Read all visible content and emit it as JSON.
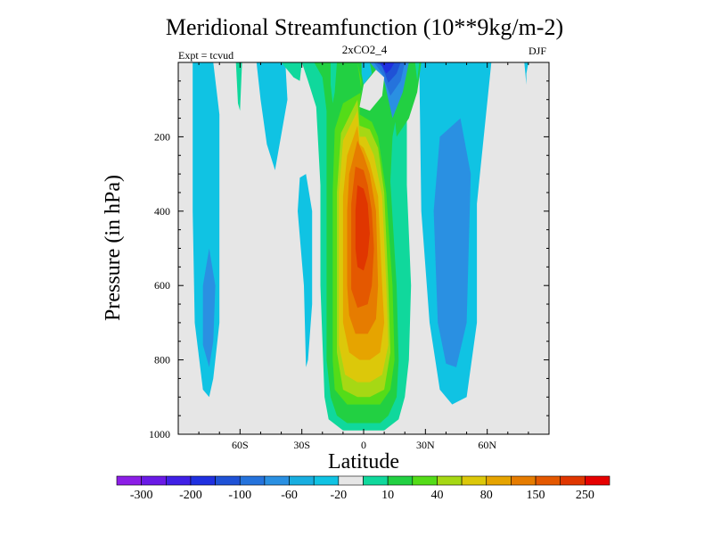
{
  "header": {
    "title": "Meridional Streamfunction (10**9kg/m-2)",
    "subtitle": "2xCO2_4",
    "left_note": "Expt = tcvud",
    "right_note": "DJF"
  },
  "chart_data": {
    "type": "contour",
    "xlabel": "Latitude",
    "ylabel": "Pressure (in hPa)",
    "xlim": [
      -90,
      90
    ],
    "ylim": [
      1000,
      0
    ],
    "y_inverted": true,
    "x_ticks": [
      {
        "value": -60,
        "label": "60S"
      },
      {
        "value": -30,
        "label": "30S"
      },
      {
        "value": 0,
        "label": "0"
      },
      {
        "value": 30,
        "label": "30N"
      },
      {
        "value": 60,
        "label": "60N"
      }
    ],
    "y_ticks": [
      {
        "value": 200,
        "label": "200"
      },
      {
        "value": 400,
        "label": "400"
      },
      {
        "value": 600,
        "label": "600"
      },
      {
        "value": 800,
        "label": "800"
      },
      {
        "value": 1000,
        "label": "1000"
      }
    ],
    "background_color": "#e6e6e6",
    "colorbar": {
      "colors": [
        "#8c1ee6",
        "#6a1ae6",
        "#4020e6",
        "#2030e0",
        "#1f52d6",
        "#2573dc",
        "#2a90e2",
        "#18aee0",
        "#10c3e3",
        "#e6e6e6",
        "#10d89c",
        "#22d042",
        "#54dc18",
        "#a6d814",
        "#dcc80a",
        "#e6a400",
        "#e67c00",
        "#e45800",
        "#e03600",
        "#e60000"
      ],
      "labels": [
        "-300",
        "-200",
        "-100",
        "-60",
        "-20",
        "10",
        "40",
        "80",
        "150",
        "250"
      ],
      "label_after_box": [
        0,
        2,
        4,
        6,
        8,
        10,
        12,
        14,
        16,
        18
      ]
    },
    "contour_regions": [
      {
        "level": 8,
        "color": "#10c3e3",
        "points": [
          [
            -83,
            0
          ],
          [
            -73,
            0
          ],
          [
            -70,
            140
          ],
          [
            -70,
            400
          ],
          [
            -70,
            700
          ],
          [
            -73,
            850
          ],
          [
            -75,
            900
          ],
          [
            -78,
            880
          ],
          [
            -82,
            700
          ],
          [
            -83,
            400
          ],
          [
            -83,
            150
          ]
        ]
      },
      {
        "level": 7,
        "color": "#2a90e2",
        "points": [
          [
            -75,
            500
          ],
          [
            -72,
            600
          ],
          [
            -73,
            750
          ],
          [
            -75,
            820
          ],
          [
            -78,
            760
          ],
          [
            -78,
            600
          ]
        ]
      },
      {
        "level": 8,
        "color": "#10c3e3",
        "points": [
          [
            -52,
            0
          ],
          [
            -38,
            0
          ],
          [
            -37,
            100
          ],
          [
            -43,
            290
          ],
          [
            -47,
            220
          ],
          [
            -50,
            100
          ]
        ]
      },
      {
        "level": 8,
        "color": "#10c3e3",
        "points": [
          [
            -31,
            310
          ],
          [
            -28,
            300
          ],
          [
            -25,
            400
          ],
          [
            -25,
            650
          ],
          [
            -27,
            800
          ],
          [
            -28,
            820
          ],
          [
            -29,
            600
          ],
          [
            -32,
            400
          ]
        ]
      },
      {
        "level": 8,
        "color": "#10c3e3",
        "points": [
          [
            27,
            0
          ],
          [
            62,
            0
          ],
          [
            55,
            380
          ],
          [
            55,
            700
          ],
          [
            50,
            900
          ],
          [
            43,
            920
          ],
          [
            37,
            880
          ],
          [
            32,
            700
          ],
          [
            28,
            400
          ]
        ]
      },
      {
        "level": 7,
        "color": "#2a90e2",
        "points": [
          [
            37,
            200
          ],
          [
            47,
            150
          ],
          [
            52,
            300
          ],
          [
            50,
            700
          ],
          [
            45,
            820
          ],
          [
            40,
            810
          ],
          [
            36,
            700
          ],
          [
            34,
            400
          ]
        ]
      },
      {
        "level": 8,
        "color": "#10c3e3",
        "points": [
          [
            78,
            0
          ],
          [
            80,
            0
          ],
          [
            79,
            30
          ],
          [
            79,
            60
          ]
        ]
      },
      {
        "level": 10,
        "color": "#10d89c",
        "points": [
          [
            -62,
            0
          ],
          [
            -59,
            0
          ],
          [
            -60,
            130
          ],
          [
            -61,
            110
          ]
        ]
      },
      {
        "level": 10,
        "color": "#10d89c",
        "points": [
          [
            -30,
            0
          ],
          [
            13,
            0
          ],
          [
            19,
            60
          ],
          [
            21,
            140
          ],
          [
            21,
            330
          ],
          [
            23,
            600
          ],
          [
            22,
            800
          ],
          [
            20,
            900
          ],
          [
            17,
            960
          ],
          [
            10,
            990
          ],
          [
            -10,
            990
          ],
          [
            -17,
            960
          ],
          [
            -19,
            900
          ],
          [
            -21,
            600
          ],
          [
            -21,
            330
          ],
          [
            -23,
            120
          ],
          [
            -27,
            50
          ]
        ]
      },
      {
        "level": 11,
        "color": "#22d042",
        "points": [
          [
            -24,
            0
          ],
          [
            9,
            0
          ],
          [
            14,
            80
          ],
          [
            16,
            140
          ],
          [
            14,
            200
          ],
          [
            13,
            320
          ],
          [
            16,
            600
          ],
          [
            17,
            800
          ],
          [
            16,
            900
          ],
          [
            12,
            950
          ],
          [
            8,
            970
          ],
          [
            -8,
            970
          ],
          [
            -13,
            950
          ],
          [
            -16,
            900
          ],
          [
            -18,
            800
          ],
          [
            -18,
            600
          ],
          [
            -18,
            330
          ],
          [
            -18,
            130
          ],
          [
            -20,
            40
          ]
        ]
      },
      {
        "level": 11,
        "color": "#22d042",
        "points": [
          [
            14,
            0
          ],
          [
            28,
            0
          ],
          [
            26,
            80
          ],
          [
            22,
            150
          ],
          [
            16,
            200
          ],
          [
            15,
            140
          ],
          [
            16,
            80
          ]
        ]
      },
      {
        "level": 10,
        "color": "#10d89c",
        "points": [
          [
            25,
            0
          ],
          [
            27,
            0
          ],
          [
            26,
            50
          ]
        ]
      },
      {
        "level": 12,
        "color": "#54dc18",
        "points": [
          [
            -3,
            0
          ],
          [
            -1,
            80
          ],
          [
            -10,
            110
          ],
          [
            -14,
            180
          ],
          [
            -15,
            350
          ],
          [
            -15,
            600
          ],
          [
            -15,
            800
          ],
          [
            -14,
            880
          ],
          [
            -8,
            920
          ],
          [
            8,
            920
          ],
          [
            13,
            880
          ],
          [
            15,
            800
          ],
          [
            14,
            600
          ],
          [
            11,
            350
          ],
          [
            7,
            200
          ],
          [
            4,
            160
          ],
          [
            -2,
            140
          ],
          [
            -1,
            50
          ]
        ]
      },
      {
        "level": 13,
        "color": "#a6d814",
        "points": [
          [
            -3,
            100
          ],
          [
            -11,
            190
          ],
          [
            -13,
            350
          ],
          [
            -13,
            600
          ],
          [
            -13,
            780
          ],
          [
            -10,
            880
          ],
          [
            -3,
            900
          ],
          [
            3,
            900
          ],
          [
            10,
            880
          ],
          [
            13,
            780
          ],
          [
            12,
            600
          ],
          [
            10,
            350
          ],
          [
            7,
            230
          ],
          [
            3,
            180
          ],
          [
            -2,
            170
          ]
        ]
      },
      {
        "level": 14,
        "color": "#dcc80a",
        "points": [
          [
            -3,
            130
          ],
          [
            -10,
            210
          ],
          [
            -12,
            350
          ],
          [
            -12,
            600
          ],
          [
            -12,
            760
          ],
          [
            -9,
            840
          ],
          [
            -3,
            860
          ],
          [
            3,
            860
          ],
          [
            9,
            840
          ],
          [
            12,
            760
          ],
          [
            11,
            600
          ],
          [
            9,
            360
          ],
          [
            5,
            250
          ],
          [
            1,
            200
          ],
          [
            -2,
            200
          ]
        ]
      },
      {
        "level": 15,
        "color": "#e6a400",
        "points": [
          [
            -3,
            170
          ],
          [
            -8,
            250
          ],
          [
            -10,
            360
          ],
          [
            -10,
            600
          ],
          [
            -10,
            700
          ],
          [
            -7,
            780
          ],
          [
            -2,
            800
          ],
          [
            3,
            800
          ],
          [
            8,
            780
          ],
          [
            10,
            700
          ],
          [
            9,
            600
          ],
          [
            7,
            360
          ],
          [
            3,
            270
          ],
          [
            0,
            230
          ],
          [
            -2,
            220
          ]
        ]
      },
      {
        "level": 16,
        "color": "#e67c00",
        "points": [
          [
            -3,
            210
          ],
          [
            -7,
            300
          ],
          [
            -8,
            400
          ],
          [
            -8,
            600
          ],
          [
            -7,
            680
          ],
          [
            -4,
            730
          ],
          [
            2,
            730
          ],
          [
            6,
            690
          ],
          [
            7,
            600
          ],
          [
            6,
            400
          ],
          [
            3,
            300
          ],
          [
            0,
            250
          ]
        ]
      },
      {
        "level": 17,
        "color": "#e45800",
        "points": [
          [
            -4,
            280
          ],
          [
            -6,
            380
          ],
          [
            -6,
            500
          ],
          [
            -6,
            610
          ],
          [
            -3,
            660
          ],
          [
            2,
            650
          ],
          [
            4,
            600
          ],
          [
            5,
            500
          ],
          [
            4,
            400
          ],
          [
            2,
            330
          ],
          [
            0,
            290
          ]
        ]
      },
      {
        "level": 18,
        "color": "#e03600",
        "points": [
          [
            -3,
            330
          ],
          [
            -4,
            400
          ],
          [
            -4,
            500
          ],
          [
            -3,
            550
          ],
          [
            0,
            560
          ],
          [
            2,
            520
          ],
          [
            3,
            460
          ],
          [
            2,
            380
          ],
          [
            0,
            340
          ]
        ]
      },
      {
        "level": 8,
        "color": "#10c3e3",
        "points": [
          [
            -1,
            0
          ],
          [
            3,
            0
          ],
          [
            4,
            30
          ],
          [
            0,
            60
          ],
          [
            -1,
            30
          ]
        ]
      },
      {
        "level": 10,
        "color": "#10d89c",
        "points": [
          [
            -16,
            0
          ],
          [
            -13,
            0
          ],
          [
            -14,
            80
          ],
          [
            -15,
            110
          ],
          [
            -16,
            60
          ]
        ]
      },
      {
        "level": 10,
        "color": "#10d89c",
        "points": [
          [
            -40,
            0
          ],
          [
            -30,
            0
          ],
          [
            -31,
            50
          ],
          [
            -34,
            40
          ]
        ]
      },
      {
        "level": 7,
        "color": "#2a90e2",
        "points": [
          [
            3,
            0
          ],
          [
            22,
            0
          ],
          [
            19,
            80
          ],
          [
            14,
            150
          ],
          [
            10,
            50
          ],
          [
            6,
            20
          ]
        ]
      },
      {
        "level": 6,
        "color": "#2573dc",
        "points": [
          [
            5,
            0
          ],
          [
            20,
            0
          ],
          [
            18,
            50
          ],
          [
            13,
            90
          ],
          [
            9,
            30
          ]
        ]
      },
      {
        "level": 5,
        "color": "#1f52d6",
        "points": [
          [
            6,
            0
          ],
          [
            18,
            0
          ],
          [
            16,
            30
          ],
          [
            12,
            55
          ],
          [
            9,
            10
          ]
        ]
      },
      {
        "level": 4,
        "color": "#2030e0",
        "points": [
          [
            8,
            0
          ],
          [
            15,
            0
          ],
          [
            13,
            20
          ],
          [
            11,
            30
          ]
        ]
      },
      {
        "level": 9,
        "color": "#e6e6e6",
        "points": [
          [
            0,
            60
          ],
          [
            6,
            20
          ],
          [
            10,
            40
          ],
          [
            9,
            90
          ],
          [
            3,
            130
          ],
          [
            -2,
            120
          ]
        ]
      },
      {
        "level": 10,
        "color": "#10d89c",
        "points": [
          [
            14,
            300
          ],
          [
            17,
            320
          ],
          [
            19,
            380
          ],
          [
            18,
            300
          ]
        ]
      }
    ]
  }
}
